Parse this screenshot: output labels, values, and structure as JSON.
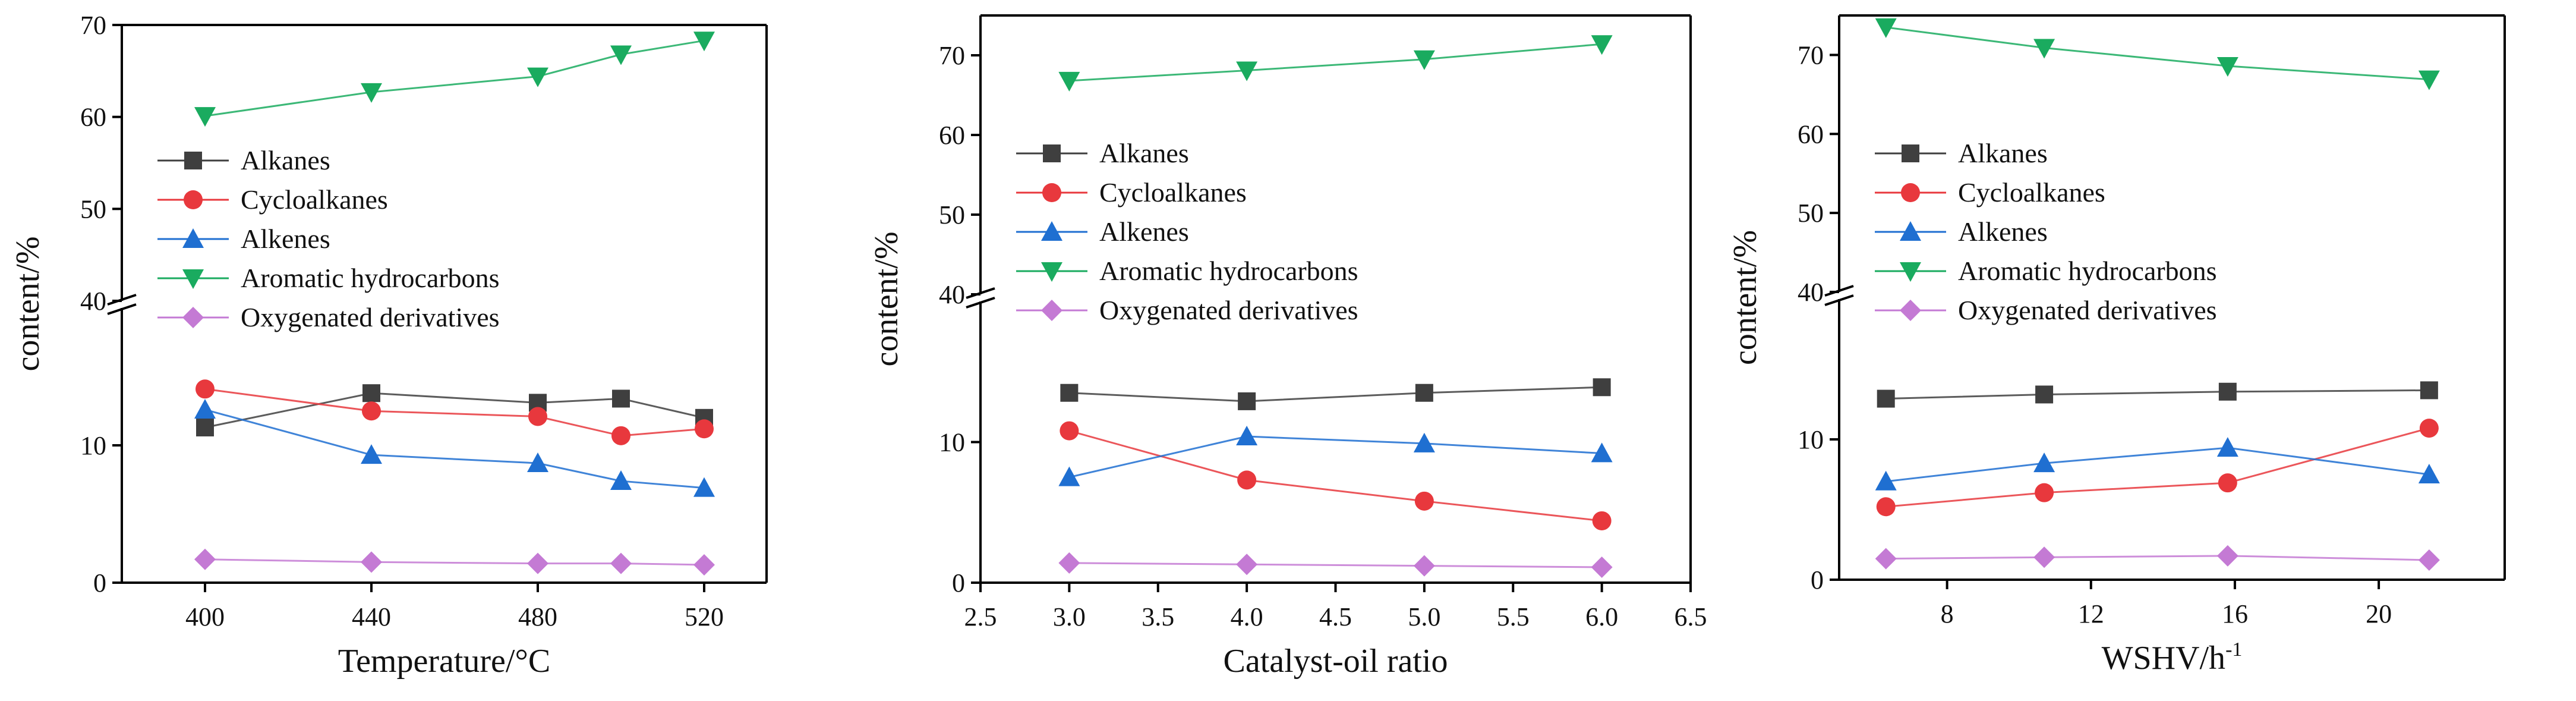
{
  "figure": {
    "background": "#ffffff"
  },
  "chart_data": [
    {
      "type": "line",
      "xlabel": "Temperature/°C",
      "ylabel": "content/%",
      "xlim": [
        380,
        535
      ],
      "x_ticks": [
        400,
        440,
        480,
        520
      ],
      "y_lower": {
        "range": [
          0,
          20
        ],
        "ticks": [
          0,
          10
        ]
      },
      "y_upper": {
        "range": [
          40,
          70
        ],
        "ticks": [
          40,
          50,
          60,
          70
        ]
      },
      "axis_break": true,
      "legend_position": "center-left",
      "x": [
        400,
        440,
        480,
        500,
        520
      ],
      "series": [
        {
          "name": "Alkanes",
          "color": "#3f3f3f",
          "marker": "square",
          "values": [
            11.3,
            13.8,
            13.1,
            13.4,
            12.0
          ]
        },
        {
          "name": "Cycloalkanes",
          "color": "#e8383d",
          "marker": "circle",
          "values": [
            14.1,
            12.5,
            12.1,
            10.7,
            11.2
          ]
        },
        {
          "name": "Alkenes",
          "color": "#1f6fd1",
          "marker": "triangle-up",
          "values": [
            12.6,
            9.3,
            8.7,
            7.4,
            6.9
          ]
        },
        {
          "name": "Aromatic hydrocarbons",
          "color": "#1aab5f",
          "marker": "triangle-down",
          "values": [
            60.1,
            62.7,
            64.4,
            66.8,
            68.3
          ]
        },
        {
          "name": "Oxygenated derivatives",
          "color": "#c47ad4",
          "marker": "diamond",
          "values": [
            1.7,
            1.5,
            1.4,
            1.4,
            1.3
          ]
        }
      ]
    },
    {
      "type": "line",
      "xlabel": "Catalyst-oil ratio",
      "ylabel": "content/%",
      "xlim": [
        2.5,
        6.5
      ],
      "x_ticks": [
        2.5,
        3.0,
        3.5,
        4.0,
        4.5,
        5.0,
        5.5,
        6.0,
        6.5
      ],
      "x_tick_labels": [
        "2.5",
        "3.0",
        "3.5",
        "4.0",
        "4.5",
        "5.0",
        "5.5",
        "6.0",
        "6.5"
      ],
      "y_lower": {
        "range": [
          0,
          20
        ],
        "ticks": [
          0,
          10
        ]
      },
      "y_upper": {
        "range": [
          40,
          75
        ],
        "ticks": [
          40,
          50,
          60,
          70
        ]
      },
      "axis_break": true,
      "legend_position": "center-left",
      "x": [
        3.0,
        4.0,
        5.0,
        6.0
      ],
      "series": [
        {
          "name": "Alkanes",
          "color": "#3f3f3f",
          "marker": "square",
          "values": [
            13.5,
            12.9,
            13.5,
            13.9
          ]
        },
        {
          "name": "Cycloalkanes",
          "color": "#e8383d",
          "marker": "circle",
          "values": [
            10.8,
            7.3,
            5.8,
            4.4
          ]
        },
        {
          "name": "Alkenes",
          "color": "#1f6fd1",
          "marker": "triangle-up",
          "values": [
            7.5,
            10.4,
            9.9,
            9.2
          ]
        },
        {
          "name": "Aromatic hydrocarbons",
          "color": "#1aab5f",
          "marker": "triangle-down",
          "values": [
            66.8,
            68.1,
            69.5,
            71.4
          ]
        },
        {
          "name": "Oxygenated derivatives",
          "color": "#c47ad4",
          "marker": "diamond",
          "values": [
            1.4,
            1.3,
            1.2,
            1.1
          ]
        }
      ]
    },
    {
      "type": "line",
      "xlabel": "WSHV/h",
      "xlabel_sup": "-1",
      "ylabel": "content/%",
      "xlim": [
        5,
        23.5
      ],
      "x_ticks": [
        8,
        12,
        16,
        20
      ],
      "y_lower": {
        "range": [
          0,
          20
        ],
        "ticks": [
          0,
          10
        ]
      },
      "y_upper": {
        "range": [
          40,
          75
        ],
        "ticks": [
          40,
          50,
          60,
          70
        ]
      },
      "axis_break": true,
      "legend_position": "center-left",
      "x": [
        6.3,
        10.7,
        15.8,
        21.4
      ],
      "series": [
        {
          "name": "Alkanes",
          "color": "#3f3f3f",
          "marker": "square",
          "values": [
            12.9,
            13.2,
            13.4,
            13.5
          ]
        },
        {
          "name": "Cycloalkanes",
          "color": "#e8383d",
          "marker": "circle",
          "values": [
            5.2,
            6.2,
            6.9,
            10.8
          ]
        },
        {
          "name": "Alkenes",
          "color": "#1f6fd1",
          "marker": "triangle-up",
          "values": [
            7.0,
            8.3,
            9.4,
            7.5
          ]
        },
        {
          "name": "Aromatic hydrocarbons",
          "color": "#1aab5f",
          "marker": "triangle-down",
          "values": [
            73.5,
            70.9,
            68.6,
            66.9
          ]
        },
        {
          "name": "Oxygenated derivatives",
          "color": "#c47ad4",
          "marker": "diamond",
          "values": [
            1.5,
            1.6,
            1.7,
            1.4
          ]
        }
      ]
    }
  ]
}
